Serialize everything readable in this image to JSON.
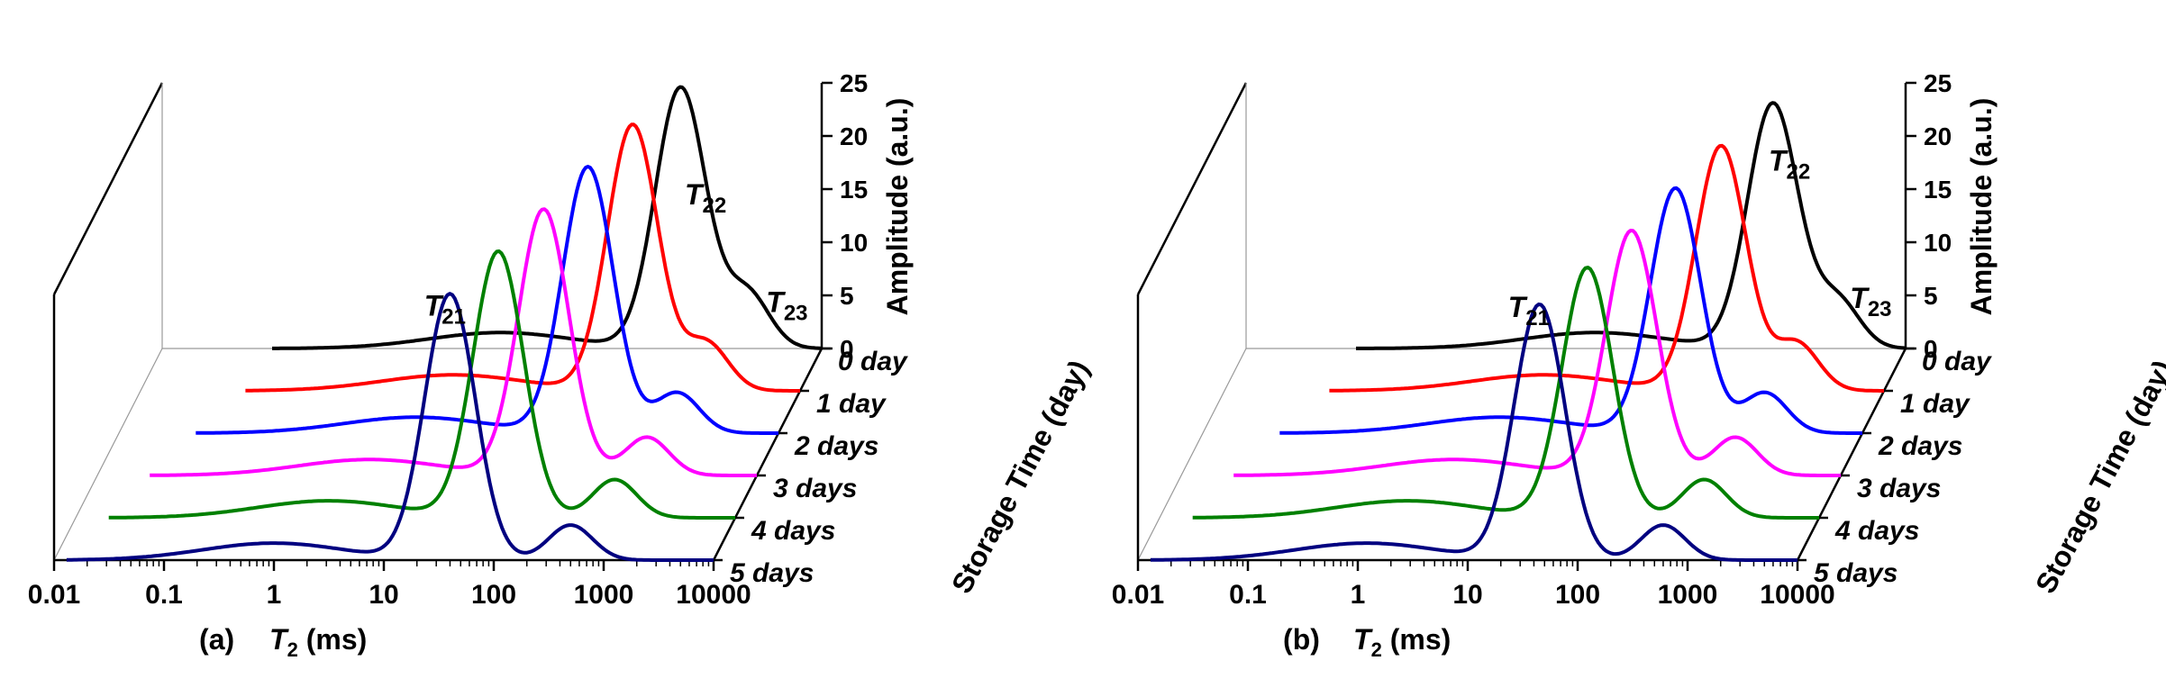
{
  "chart_data": [
    {
      "type": "line",
      "panel_label": "(a)",
      "x_axis": {
        "label_symbol": "T",
        "label_sub": "2",
        "label_unit": " (ms)",
        "scale": "log",
        "ticks": [
          "0.01",
          "0.1",
          "1",
          "10",
          "100",
          "1000",
          "10000"
        ],
        "range": [
          0.01,
          10000
        ]
      },
      "y_axis": {
        "label": "Storage Time (day)"
      },
      "z_axis": {
        "label": "Amplitude (a.u.)",
        "range": [
          0,
          25
        ],
        "ticks": [
          "0",
          "5",
          "10",
          "15",
          "20",
          "25"
        ]
      },
      "peak_labels": [
        {
          "symbol": "T",
          "sub": "21",
          "x": 2,
          "series": "0 day"
        },
        {
          "symbol": "T",
          "sub": "22",
          "x": 1000,
          "series": "0 day"
        },
        {
          "symbol": "T",
          "sub": "23",
          "x": 5000,
          "series": "0 day"
        }
      ],
      "series": [
        {
          "name": "0 day",
          "color": "#000000",
          "x_min": 0.1,
          "x_max": 10000,
          "peaks": [
            {
              "x": 12,
              "amp": 1.5,
              "w": 0.65
            },
            {
              "x": 520,
              "amp": 24.5,
              "w": 0.23
            },
            {
              "x": 2100,
              "amp": 5.2,
              "w": 0.2
            }
          ]
        },
        {
          "name": "1 day",
          "color": "#ff0000",
          "x_min": 0.09,
          "x_max": 10000,
          "peaks": [
            {
              "x": 7,
              "amp": 1.5,
              "w": 0.65
            },
            {
              "x": 300,
              "amp": 25.0,
              "w": 0.23
            },
            {
              "x": 1400,
              "amp": 4.5,
              "w": 0.2
            }
          ]
        },
        {
          "name": "2 days",
          "color": "#0000ff",
          "x_min": 0.05,
          "x_max": 10000,
          "peaks": [
            {
              "x": 5,
              "amp": 1.5,
              "w": 0.65
            },
            {
              "x": 185,
              "amp": 25.0,
              "w": 0.23
            },
            {
              "x": 1200,
              "amp": 3.8,
              "w": 0.2
            }
          ]
        },
        {
          "name": "3 days",
          "color": "#ff00ff",
          "x_min": 0.03,
          "x_max": 10000,
          "peaks": [
            {
              "x": 3,
              "amp": 1.5,
              "w": 0.65
            },
            {
              "x": 115,
              "amp": 25.0,
              "w": 0.23
            },
            {
              "x": 1000,
              "amp": 3.6,
              "w": 0.2
            }
          ]
        },
        {
          "name": "4 days",
          "color": "#008000",
          "x_min": 0.02,
          "x_max": 10000,
          "peaks": [
            {
              "x": 2,
              "amp": 1.6,
              "w": 0.65
            },
            {
              "x": 70,
              "amp": 25.0,
              "w": 0.23
            },
            {
              "x": 800,
              "amp": 3.6,
              "w": 0.2
            }
          ]
        },
        {
          "name": "5 days",
          "color": "#000080",
          "x_min": 0.013,
          "x_max": 10000,
          "peaks": [
            {
              "x": 1,
              "amp": 1.6,
              "w": 0.65
            },
            {
              "x": 40,
              "amp": 25.0,
              "w": 0.23
            },
            {
              "x": 500,
              "amp": 3.3,
              "w": 0.2
            }
          ]
        }
      ]
    },
    {
      "type": "line",
      "panel_label": "(b)",
      "x_axis": {
        "label_symbol": "T",
        "label_sub": "2",
        "label_unit": " (ms)",
        "scale": "log",
        "ticks": [
          "0.01",
          "0.1",
          "1",
          "10",
          "100",
          "1000",
          "10000"
        ],
        "range": [
          0.01,
          10000
        ]
      },
      "y_axis": {
        "label": "Storage Time (day)"
      },
      "z_axis": {
        "label": "Amplitude (a.u.)",
        "range": [
          0,
          25
        ],
        "ticks": [
          "0",
          "5",
          "10",
          "15",
          "20",
          "25"
        ]
      },
      "peak_labels": [
        {
          "symbol": "T",
          "sub": "21",
          "x": 2,
          "series": "0 day"
        },
        {
          "symbol": "T",
          "sub": "22",
          "x": 1000,
          "series": "0 day"
        },
        {
          "symbol": "T",
          "sub": "23",
          "x": 5000,
          "series": "0 day"
        }
      ],
      "series": [
        {
          "name": "0 day",
          "color": "#000000",
          "x_min": 0.1,
          "x_max": 10000,
          "peaks": [
            {
              "x": 15,
              "amp": 1.5,
              "w": 0.65
            },
            {
              "x": 620,
              "amp": 23.0,
              "w": 0.23
            },
            {
              "x": 2400,
              "amp": 4.5,
              "w": 0.2
            }
          ]
        },
        {
          "name": "1 day",
          "color": "#ff0000",
          "x_min": 0.09,
          "x_max": 10000,
          "peaks": [
            {
              "x": 8,
              "amp": 1.5,
              "w": 0.65
            },
            {
              "x": 330,
              "amp": 23.0,
              "w": 0.23
            },
            {
              "x": 1600,
              "amp": 4.5,
              "w": 0.2
            }
          ]
        },
        {
          "name": "2 days",
          "color": "#0000ff",
          "x_min": 0.05,
          "x_max": 10000,
          "peaks": [
            {
              "x": 5,
              "amp": 1.5,
              "w": 0.65
            },
            {
              "x": 200,
              "amp": 23.0,
              "w": 0.23
            },
            {
              "x": 1300,
              "amp": 3.8,
              "w": 0.2
            }
          ]
        },
        {
          "name": "3 days",
          "color": "#ff00ff",
          "x_min": 0.03,
          "x_max": 10000,
          "peaks": [
            {
              "x": 3,
              "amp": 1.5,
              "w": 0.65
            },
            {
              "x": 125,
              "amp": 23.0,
              "w": 0.23
            },
            {
              "x": 1100,
              "amp": 3.6,
              "w": 0.2
            }
          ]
        },
        {
          "name": "4 days",
          "color": "#008000",
          "x_min": 0.02,
          "x_max": 10000,
          "peaks": [
            {
              "x": 1.8,
              "amp": 1.6,
              "w": 0.65
            },
            {
              "x": 78,
              "amp": 23.5,
              "w": 0.23
            },
            {
              "x": 900,
              "amp": 3.6,
              "w": 0.2
            }
          ]
        },
        {
          "name": "5 days",
          "color": "#000080",
          "x_min": 0.013,
          "x_max": 10000,
          "peaks": [
            {
              "x": 1.2,
              "amp": 1.6,
              "w": 0.65
            },
            {
              "x": 45,
              "amp": 24.0,
              "w": 0.23
            },
            {
              "x": 600,
              "amp": 3.3,
              "w": 0.2
            }
          ]
        }
      ]
    }
  ]
}
